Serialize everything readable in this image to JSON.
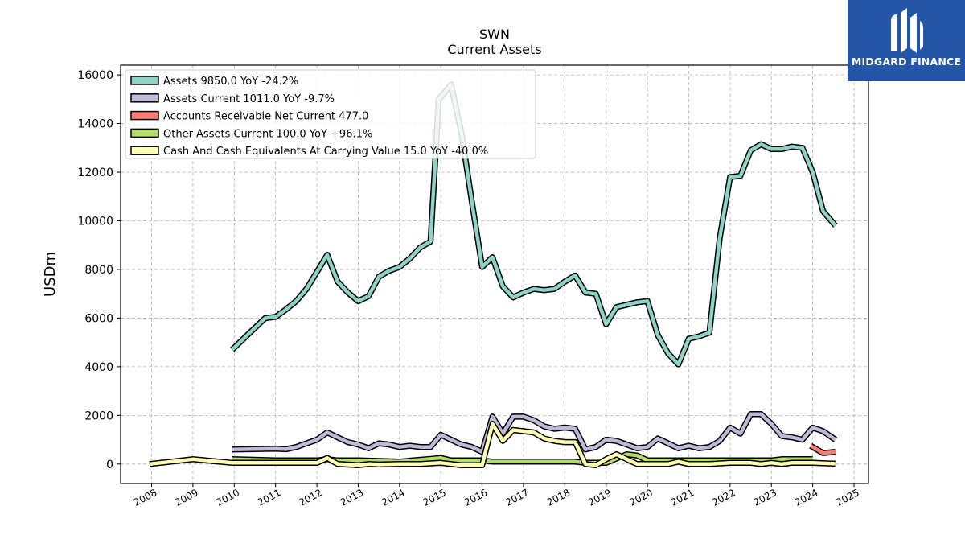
{
  "chart_data": {
    "type": "line",
    "title": "SWN",
    "subtitle": "Current  Assets",
    "ylabel": "USDm",
    "xlabel": "",
    "xlim": [
      2007.25,
      2025.35
    ],
    "ylim": [
      -800,
      16400
    ],
    "yticks": [
      0,
      2000,
      4000,
      6000,
      8000,
      10000,
      12000,
      14000,
      16000
    ],
    "xticks": [
      2008,
      2009,
      2010,
      2011,
      2012,
      2013,
      2014,
      2015,
      2016,
      2017,
      2018,
      2019,
      2020,
      2021,
      2022,
      2023,
      2024,
      2025
    ],
    "grid": true,
    "legend_position": "top-left",
    "series": [
      {
        "name": "Assets  9850.0 YoY -24.2%",
        "color": "#8dd3c7",
        "points": [
          [
            2009.95,
            4700
          ],
          [
            2010.5,
            5600
          ],
          [
            2010.75,
            6000
          ],
          [
            2011.0,
            6050
          ],
          [
            2011.25,
            6350
          ],
          [
            2011.5,
            6700
          ],
          [
            2011.75,
            7200
          ],
          [
            2012.0,
            7900
          ],
          [
            2012.25,
            8600
          ],
          [
            2012.5,
            7500
          ],
          [
            2012.75,
            7050
          ],
          [
            2013.0,
            6700
          ],
          [
            2013.25,
            6900
          ],
          [
            2013.5,
            7700
          ],
          [
            2013.75,
            7950
          ],
          [
            2014.0,
            8100
          ],
          [
            2014.25,
            8450
          ],
          [
            2014.5,
            8900
          ],
          [
            2014.75,
            9150
          ],
          [
            2014.95,
            15000
          ],
          [
            2015.25,
            15600
          ],
          [
            2015.5,
            13600
          ],
          [
            2015.75,
            10800
          ],
          [
            2016.0,
            8100
          ],
          [
            2016.25,
            8500
          ],
          [
            2016.5,
            7300
          ],
          [
            2016.75,
            6850
          ],
          [
            2017.0,
            7050
          ],
          [
            2017.25,
            7200
          ],
          [
            2017.5,
            7150
          ],
          [
            2017.75,
            7200
          ],
          [
            2018.0,
            7500
          ],
          [
            2018.25,
            7750
          ],
          [
            2018.5,
            7050
          ],
          [
            2018.75,
            7000
          ],
          [
            2019.0,
            5750
          ],
          [
            2019.25,
            6450
          ],
          [
            2019.5,
            6550
          ],
          [
            2019.75,
            6650
          ],
          [
            2020.0,
            6700
          ],
          [
            2020.25,
            5300
          ],
          [
            2020.5,
            4550
          ],
          [
            2020.75,
            4100
          ],
          [
            2021.0,
            5150
          ],
          [
            2021.25,
            5250
          ],
          [
            2021.5,
            5400
          ],
          [
            2021.75,
            9300
          ],
          [
            2022.0,
            11800
          ],
          [
            2022.25,
            11850
          ],
          [
            2022.5,
            12900
          ],
          [
            2022.75,
            13150
          ],
          [
            2023.0,
            12950
          ],
          [
            2023.25,
            12950
          ],
          [
            2023.5,
            13050
          ],
          [
            2023.75,
            13000
          ],
          [
            2024.0,
            12000
          ],
          [
            2024.25,
            10400
          ],
          [
            2024.55,
            9800
          ]
        ]
      },
      {
        "name": "Assets Current  1011.0 YoY -9.7%",
        "color": "#bebada",
        "points": [
          [
            2009.95,
            600
          ],
          [
            2011.0,
            630
          ],
          [
            2011.25,
            610
          ],
          [
            2011.5,
            700
          ],
          [
            2011.75,
            850
          ],
          [
            2012.0,
            1000
          ],
          [
            2012.25,
            1300
          ],
          [
            2012.5,
            1100
          ],
          [
            2012.75,
            900
          ],
          [
            2013.0,
            800
          ],
          [
            2013.25,
            650
          ],
          [
            2013.5,
            850
          ],
          [
            2013.75,
            800
          ],
          [
            2014.0,
            700
          ],
          [
            2014.25,
            750
          ],
          [
            2014.5,
            700
          ],
          [
            2014.75,
            700
          ],
          [
            2015.0,
            1200
          ],
          [
            2015.25,
            1000
          ],
          [
            2015.5,
            800
          ],
          [
            2015.75,
            700
          ],
          [
            2016.0,
            500
          ],
          [
            2016.25,
            1950
          ],
          [
            2016.5,
            1250
          ],
          [
            2016.75,
            1950
          ],
          [
            2017.0,
            1950
          ],
          [
            2017.25,
            1800
          ],
          [
            2017.5,
            1550
          ],
          [
            2017.75,
            1450
          ],
          [
            2018.0,
            1500
          ],
          [
            2018.25,
            1450
          ],
          [
            2018.5,
            600
          ],
          [
            2018.75,
            700
          ],
          [
            2019.0,
            1000
          ],
          [
            2019.25,
            950
          ],
          [
            2019.5,
            800
          ],
          [
            2019.75,
            650
          ],
          [
            2020.0,
            700
          ],
          [
            2020.25,
            1050
          ],
          [
            2020.5,
            850
          ],
          [
            2020.75,
            650
          ],
          [
            2021.0,
            750
          ],
          [
            2021.25,
            650
          ],
          [
            2021.5,
            700
          ],
          [
            2021.75,
            950
          ],
          [
            2022.0,
            1500
          ],
          [
            2022.25,
            1250
          ],
          [
            2022.5,
            2050
          ],
          [
            2022.75,
            2050
          ],
          [
            2023.0,
            1650
          ],
          [
            2023.25,
            1150
          ],
          [
            2023.5,
            1100
          ],
          [
            2023.75,
            1000
          ],
          [
            2024.0,
            1500
          ],
          [
            2024.25,
            1350
          ],
          [
            2024.55,
            1000
          ]
        ]
      },
      {
        "name": "Accounts Receivable Net Current  477.0",
        "color": "#fb8072",
        "points": [
          [
            2023.95,
            750
          ],
          [
            2024.25,
            450
          ],
          [
            2024.55,
            500
          ]
        ]
      },
      {
        "name": "Other Assets Current  100.0 YoY +96.1%",
        "color": "#b3de69",
        "points": [
          [
            2009.95,
            200
          ],
          [
            2011.0,
            150
          ],
          [
            2012.0,
            150
          ],
          [
            2012.25,
            200
          ],
          [
            2012.5,
            150
          ],
          [
            2013.0,
            150
          ],
          [
            2014.0,
            100
          ],
          [
            2015.0,
            250
          ],
          [
            2015.25,
            150
          ],
          [
            2016.0,
            150
          ],
          [
            2016.25,
            100
          ],
          [
            2017.0,
            100
          ],
          [
            2018.0,
            100
          ],
          [
            2018.25,
            100
          ],
          [
            2018.5,
            50
          ],
          [
            2019.0,
            50
          ],
          [
            2019.5,
            400
          ],
          [
            2019.75,
            350
          ],
          [
            2020.0,
            150
          ],
          [
            2021.0,
            150
          ],
          [
            2022.0,
            150
          ],
          [
            2023.0,
            150
          ],
          [
            2023.25,
            200
          ],
          [
            2024.0,
            200
          ]
        ]
      },
      {
        "name": "Cash And Cash Equivalents At Carrying Value  15.0 YoY -40.0%",
        "color": "#ffffb3",
        "points": [
          [
            2007.95,
            0
          ],
          [
            2009.0,
            200
          ],
          [
            2009.95,
            50
          ],
          [
            2011.0,
            50
          ],
          [
            2012.0,
            50
          ],
          [
            2012.25,
            250
          ],
          [
            2012.5,
            0
          ],
          [
            2013.0,
            -50
          ],
          [
            2013.25,
            0
          ],
          [
            2013.5,
            -20
          ],
          [
            2014.0,
            0
          ],
          [
            2014.5,
            0
          ],
          [
            2015.0,
            50
          ],
          [
            2015.25,
            0
          ],
          [
            2015.5,
            -50
          ],
          [
            2016.0,
            -50
          ],
          [
            2016.25,
            1650
          ],
          [
            2016.5,
            950
          ],
          [
            2016.75,
            1400
          ],
          [
            2017.0,
            1350
          ],
          [
            2017.25,
            1300
          ],
          [
            2017.5,
            1050
          ],
          [
            2017.75,
            950
          ],
          [
            2018.0,
            900
          ],
          [
            2018.25,
            900
          ],
          [
            2018.5,
            0
          ],
          [
            2018.75,
            -50
          ],
          [
            2019.0,
            200
          ],
          [
            2019.25,
            400
          ],
          [
            2019.5,
            200
          ],
          [
            2019.75,
            0
          ],
          [
            2020.0,
            0
          ],
          [
            2020.5,
            0
          ],
          [
            2020.75,
            100
          ],
          [
            2021.0,
            0
          ],
          [
            2021.5,
            0
          ],
          [
            2022.0,
            50
          ],
          [
            2022.5,
            50
          ],
          [
            2022.75,
            0
          ],
          [
            2023.0,
            50
          ],
          [
            2023.25,
            0
          ],
          [
            2023.5,
            50
          ],
          [
            2024.0,
            50
          ],
          [
            2024.55,
            15
          ]
        ]
      }
    ]
  },
  "logo": {
    "text": "MIDGARD FINANCE",
    "icon": "midgard-logo-icon",
    "background": "#2456a8"
  }
}
